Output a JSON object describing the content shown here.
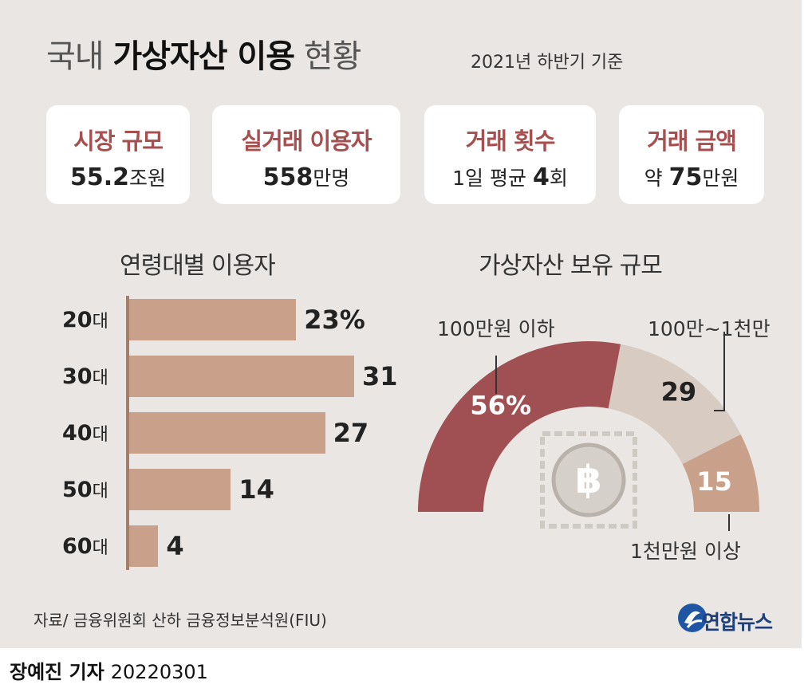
{
  "title": {
    "light1": "국내",
    "bold": "가상자산 이용",
    "light2": "현황"
  },
  "basis": "2021년 하반기 기준",
  "cards": [
    {
      "label": "시장 규모",
      "prefix": "",
      "number": "55.2",
      "unit": "조원"
    },
    {
      "label": "실거래 이용자",
      "prefix": "",
      "number": "558",
      "unit": "만명"
    },
    {
      "label": "거래 횟수",
      "prefix": "1일 평균",
      "number": "4",
      "unit": "회"
    },
    {
      "label": "거래 금액",
      "prefix": "약",
      "number": "75",
      "unit": "만원"
    }
  ],
  "age_section": {
    "title": "연령대별 이용자"
  },
  "holdings_section": {
    "title": "가상자산 보유 규모"
  },
  "chart_data": [
    {
      "type": "bar",
      "title": "연령대별 이용자",
      "categories": [
        "20",
        "30",
        "40",
        "50",
        "60"
      ],
      "category_suffix": "대",
      "values": [
        23,
        31,
        27,
        14,
        4
      ],
      "value_labels": [
        "23%",
        "31",
        "27",
        "14",
        "4"
      ],
      "xlim": [
        0,
        31
      ],
      "color": "#c9a08a"
    },
    {
      "type": "pie",
      "title": "가상자산 보유 규모",
      "categories": [
        "100만원 이하",
        "100만~1천만",
        "1천만원 이상"
      ],
      "values": [
        56,
        29,
        15
      ],
      "value_labels": [
        "56%",
        "29",
        "15"
      ],
      "colors": [
        "#a04f52",
        "#d8cbc1",
        "#c9a08a"
      ]
    }
  ],
  "source": "자료/ 금융위원회 산하 금융정보분석원(FIU)",
  "logo": {
    "text": "연합뉴스",
    "color": "#1e56a5"
  },
  "credit": {
    "author": "장예진 기자",
    "date": "20220301"
  }
}
